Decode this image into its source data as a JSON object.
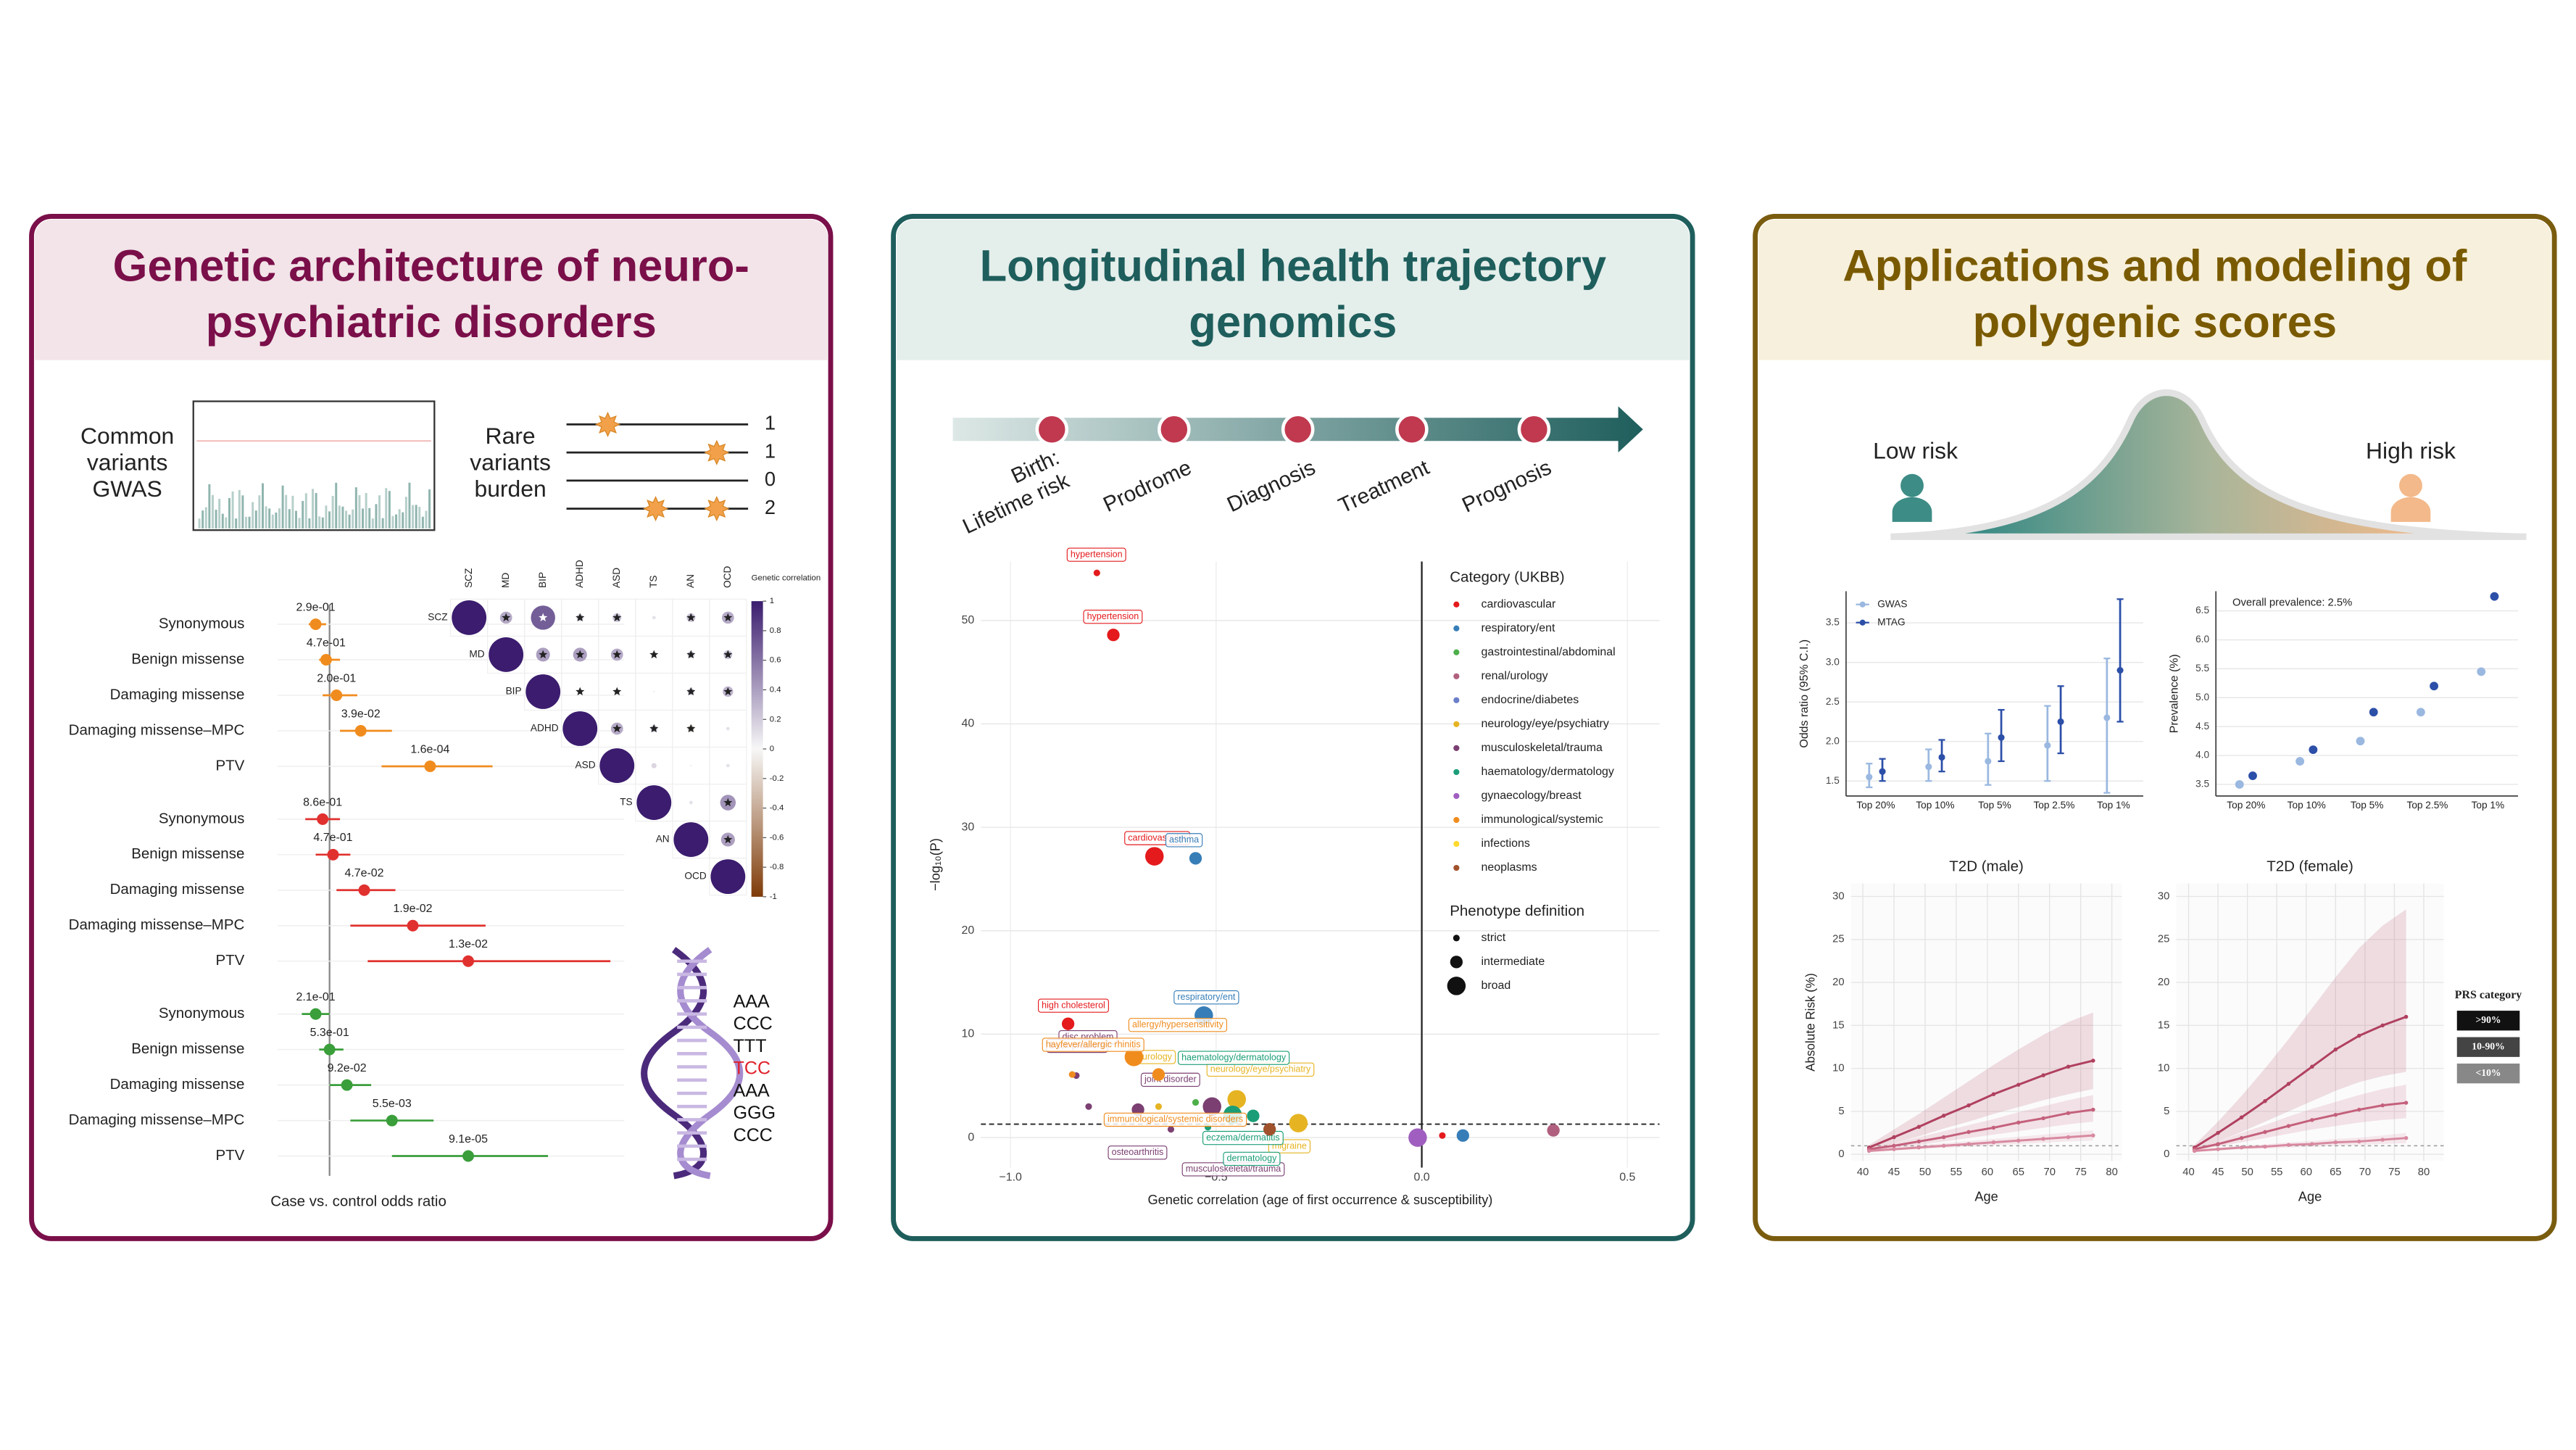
{
  "panels": [
    {
      "title": [
        "Genetic architecture of neuro-",
        "psychiatric disorders"
      ],
      "common_variants": [
        "Common",
        "variants",
        "GWAS"
      ],
      "rare_variants": [
        "Rare",
        "variants",
        "burden"
      ],
      "rare_counts": [
        1,
        1,
        0,
        2
      ],
      "codons": [
        "AAA",
        "CCC",
        "TTT",
        "TCC",
        "AAA",
        "GGG",
        "CCC"
      ],
      "codon_colors": [
        "#111111",
        "#111111",
        "#111111",
        "#e0202a",
        "#111111",
        "#111111",
        "#111111"
      ]
    },
    {
      "title": [
        "Longitudinal health trajectory",
        "genomics"
      ],
      "stages": [
        [
          "Birth:",
          "Lifetime risk"
        ],
        [
          "Prodrome"
        ],
        [
          "Diagnosis"
        ],
        [
          "Treatment"
        ],
        [
          "Prognosis"
        ]
      ]
    },
    {
      "title": [
        "Applications and modeling of",
        "polygenic scores"
      ],
      "low_label": "Low risk",
      "high_label": "High risk"
    }
  ],
  "chart_data": [
    {
      "type": "forest",
      "xlabel": "Case vs. control odds ratio",
      "xlim": [
        0.85,
        1.85
      ],
      "reference": 1,
      "categories": [
        "Synonymous",
        "Benign missense",
        "Damaging missense",
        "Damaging missense–MPC",
        "PTV"
      ],
      "series": [
        {
          "color": "#f08c1e",
          "values": [
            0.96,
            0.99,
            1.02,
            1.09,
            1.29
          ],
          "lower": [
            0.94,
            0.97,
            0.98,
            1.03,
            1.15
          ],
          "upper": [
            0.99,
            1.03,
            1.08,
            1.18,
            1.47
          ],
          "pvalue_labels": [
            "2.9e-01",
            "4.7e-01",
            "2.0e-01",
            "3.9e-02",
            "1.6e-04"
          ]
        },
        {
          "color": "#e0312f",
          "values": [
            0.98,
            1.01,
            1.1,
            1.24,
            1.4
          ],
          "lower": [
            0.93,
            0.96,
            1.02,
            1.06,
            1.11
          ],
          "upper": [
            1.03,
            1.06,
            1.19,
            1.45,
            1.81
          ],
          "pvalue_labels": [
            "8.6e-01",
            "4.7e-01",
            "4.7e-02",
            "1.9e-02",
            "1.3e-02"
          ]
        },
        {
          "color": "#3a9e3a",
          "values": [
            0.96,
            1.0,
            1.05,
            1.18,
            1.4
          ],
          "lower": [
            0.92,
            0.97,
            1.0,
            1.06,
            1.18
          ],
          "upper": [
            1.0,
            1.04,
            1.12,
            1.3,
            1.63
          ],
          "pvalue_labels": [
            "2.1e-01",
            "5.3e-01",
            "9.2e-02",
            "5.5e-03",
            "9.1e-05"
          ]
        }
      ]
    },
    {
      "type": "heatmap",
      "title": "Genetic correlation",
      "categories": [
        "SCZ",
        "MD",
        "BIP",
        "ADHD",
        "ASD",
        "TS",
        "AN",
        "OCD"
      ],
      "values": [
        [
          1,
          0.35,
          0.7,
          0.2,
          0.25,
          0.1,
          0.25,
          0.35
        ],
        [
          null,
          1,
          0.4,
          0.4,
          0.35,
          0.15,
          0.2,
          0.25
        ],
        [
          null,
          null,
          1,
          0.1,
          0.15,
          0.05,
          0.2,
          0.3
        ],
        [
          null,
          null,
          null,
          1,
          0.35,
          0.2,
          -0.2,
          0.1
        ],
        [
          null,
          null,
          null,
          null,
          1,
          0.15,
          0.05,
          0.1
        ],
        [
          null,
          null,
          null,
          null,
          null,
          1,
          0.1,
          0.45
        ],
        [
          null,
          null,
          null,
          null,
          null,
          null,
          1,
          0.4
        ],
        [
          null,
          null,
          null,
          null,
          null,
          null,
          null,
          1
        ]
      ],
      "significant": [
        [
          false,
          true,
          true,
          true,
          true,
          false,
          true,
          true
        ],
        [
          null,
          false,
          true,
          true,
          true,
          true,
          true,
          true
        ],
        [
          null,
          null,
          false,
          true,
          true,
          false,
          true,
          true
        ],
        [
          null,
          null,
          null,
          false,
          true,
          true,
          true,
          false
        ],
        [
          null,
          null,
          null,
          null,
          false,
          false,
          false,
          false
        ],
        [
          null,
          null,
          null,
          null,
          null,
          false,
          false,
          true
        ],
        [
          null,
          null,
          null,
          null,
          null,
          null,
          false,
          true
        ],
        [
          null,
          null,
          null,
          null,
          null,
          null,
          null,
          false
        ]
      ],
      "colors": [
        "#7f3b08",
        "#f7f7f7",
        "#3b1c6e"
      ],
      "ylim": [
        -1,
        1
      ],
      "yticks": [
        1,
        0.8,
        0.6,
        0.4,
        0.2,
        0,
        -0.2,
        -0.4,
        -0.6,
        -0.8,
        -1
      ]
    },
    {
      "type": "scatter",
      "xlabel": "Genetic correlation (age of first occurrence & susceptibility)",
      "ylabel": "−log₁₀(P)",
      "xlim": [
        -1.072,
        0.578
      ],
      "ylim": [
        -2.9,
        55.7
      ],
      "xticks": [
        {
          "value": -1,
          "label": "−1.0"
        },
        {
          "value": -0.5,
          "label": "−0.5"
        },
        {
          "value": 0,
          "label": "0.0"
        },
        {
          "value": 0.5,
          "label": "0.5"
        }
      ],
      "yticks": [
        0,
        10,
        20,
        30,
        40,
        50
      ],
      "hline": 1.3,
      "vline": 0,
      "legend_title": "Category (UKBB)",
      "definition_title": "Phenotype definition",
      "definitions": [
        "strict",
        "intermediate",
        "broad"
      ],
      "series": [
        {
          "name": "cardiovascular",
          "color": "#e41a1c",
          "x": [
            -0.79,
            -0.75,
            -0.65,
            -0.86,
            0.05
          ],
          "values": [
            54.6,
            48.6,
            27.2,
            11.0,
            0.2
          ],
          "definition": [
            "strict",
            "intermediate",
            "broad",
            "intermediate",
            "strict"
          ],
          "labels": [
            "hypertension",
            "hypertension",
            "cardiovascular",
            "high cholesterol",
            null
          ]
        },
        {
          "name": "respiratory/ent",
          "color": "#377eb8",
          "x": [
            -0.55,
            -0.53,
            0.1
          ],
          "values": [
            27.0,
            11.8,
            0.2
          ],
          "definition": [
            "intermediate",
            "broad",
            "intermediate"
          ],
          "labels": [
            "asthma",
            "respiratory/ent",
            null
          ]
        },
        {
          "name": "gastrointestinal/abdominal",
          "color": "#4daf4a",
          "x": [
            -0.55
          ],
          "values": [
            3.4
          ],
          "definition": [
            "strict"
          ],
          "labels": [
            null
          ]
        },
        {
          "name": "renal/urology",
          "color": "#b0607e",
          "x": [
            0.32
          ],
          "values": [
            0.7
          ],
          "definition": [
            "intermediate"
          ],
          "labels": [
            null
          ]
        },
        {
          "name": "endocrine/diabetes",
          "color": "#6a7fc8",
          "x": [],
          "values": [],
          "definition": [],
          "labels": []
        },
        {
          "name": "neurology/eye/psychiatry",
          "color": "#e6b422",
          "x": [
            -0.64,
            -0.45,
            -0.3
          ],
          "values": [
            3.0,
            3.7,
            1.4
          ],
          "definition": [
            "strict",
            "broad",
            "broad"
          ],
          "labels": [
            "neurology",
            "neurology/eye/psychiatry",
            "migraine"
          ]
        },
        {
          "name": "musculoskeletal/trauma",
          "color": "#7b3f72",
          "x": [
            -0.69,
            -0.81,
            -0.51,
            -0.61,
            -0.84
          ],
          "values": [
            2.7,
            3.0,
            3.0,
            0.8,
            6.0
          ],
          "definition": [
            "intermediate",
            "strict",
            "broad",
            "strict",
            "strict"
          ],
          "labels": [
            "osteoarthritis",
            "disc problem",
            "musculoskeletal/trauma",
            "joint disorder",
            "back problem"
          ]
        },
        {
          "name": "haematology/dermatology",
          "color": "#1b9e77",
          "x": [
            -0.46,
            -0.41,
            -0.52
          ],
          "values": [
            2.2,
            2.1,
            1.0
          ],
          "definition": [
            "broad",
            "intermediate",
            "strict"
          ],
          "labels": [
            "eczema/dermatitis",
            "dermatology",
            "haematology/dermatology"
          ]
        },
        {
          "name": "gynaecology/breast",
          "color": "#a05fc0",
          "x": [
            -0.01
          ],
          "values": [
            0.0
          ],
          "definition": [
            "broad"
          ],
          "labels": [
            null
          ]
        },
        {
          "name": "immunological/systemic",
          "color": "#f08c1e",
          "x": [
            -0.7,
            -0.64,
            -0.85
          ],
          "values": [
            7.8,
            6.1,
            6.1
          ],
          "definition": [
            "broad",
            "intermediate",
            "strict"
          ],
          "labels": [
            "immunological/systemic disorders",
            "allergy/hypersensitivity",
            "hayfever/allergic rhinitis"
          ]
        },
        {
          "name": "infections",
          "color": "#ffd92f",
          "x": [],
          "values": [],
          "definition": [],
          "labels": []
        },
        {
          "name": "neoplasms",
          "color": "#a0522d",
          "x": [
            -0.37
          ],
          "values": [
            0.8
          ],
          "definition": [
            "intermediate"
          ],
          "labels": [
            null
          ]
        }
      ]
    },
    {
      "type": "errorbar",
      "ylabel": "Odds ratio (95% C.I.)",
      "categories": [
        "Top 20%",
        "Top 10%",
        "Top 5%",
        "Top 2.5%",
        "Top 1%"
      ],
      "ylim": [
        1.31,
        3.9
      ],
      "yticks": [
        1.5,
        {
          "value": 2,
          "label": "2.0"
        },
        2.5,
        {
          "value": 3,
          "label": "3.0"
        },
        3.5
      ],
      "series": [
        {
          "name": "GWAS",
          "color": "#9ab8e0",
          "values": [
            1.55,
            1.68,
            1.75,
            1.95,
            2.3
          ],
          "lower": [
            1.42,
            1.5,
            1.45,
            1.5,
            1.35
          ],
          "upper": [
            1.72,
            1.9,
            2.1,
            2.45,
            3.05
          ]
        },
        {
          "name": "MTAG",
          "color": "#2c4fa8",
          "values": [
            1.62,
            1.8,
            2.05,
            2.25,
            2.9
          ],
          "lower": [
            1.5,
            1.62,
            1.75,
            1.85,
            2.25
          ],
          "upper": [
            1.78,
            2.02,
            2.4,
            2.7,
            3.8
          ]
        }
      ]
    },
    {
      "type": "dot",
      "ylabel": "Prevalence (%)",
      "annotation": "Overall prevalence: 2.5%",
      "categories": [
        "Top 20%",
        "Top 10%",
        "Top 5%",
        "Top 2.5%",
        "Top 1%"
      ],
      "ylim": [
        3.3,
        6.84
      ],
      "yticks": [
        3.5,
        {
          "value": 4,
          "label": "4.0"
        },
        4.5,
        {
          "value": 5,
          "label": "5.0"
        },
        5.5,
        {
          "value": 6,
          "label": "6.0"
        },
        6.5
      ],
      "series": [
        {
          "color": "#9ab8e0",
          "values": [
            3.5,
            3.9,
            4.25,
            4.75,
            5.45
          ]
        },
        {
          "color": "#2c4fa8",
          "values": [
            3.65,
            4.1,
            4.75,
            5.2,
            6.75
          ]
        }
      ]
    },
    {
      "type": "line",
      "title": "T2D (male)",
      "xlabel": "Age",
      "ylabel": "Absolute Risk (%)",
      "legend_title": "PRS category",
      "x": [
        41,
        45,
        49,
        53,
        57,
        61,
        65,
        69,
        73,
        77
      ],
      "xlim": [
        38.1,
        81.6
      ],
      "xticks": [
        40,
        45,
        50,
        55,
        60,
        65,
        70,
        75,
        80
      ],
      "ylim": [
        -0.77,
        31.5
      ],
      "yticks": [
        0,
        5,
        10,
        15,
        20,
        25,
        30
      ],
      "hline": 1,
      "series": [
        {
          "name": ">90%",
          "color": "#b0405f",
          "key_color": "#111111",
          "values": [
            0.8,
            2.0,
            3.2,
            4.5,
            5.7,
            7.0,
            8.1,
            9.2,
            10.2,
            10.9
          ],
          "lower": [
            0.6,
            1.3,
            2.1,
            3.0,
            3.8,
            4.7,
            5.5,
            6.3,
            7.0,
            7.6
          ],
          "upper": [
            1.1,
            2.9,
            4.7,
            6.6,
            8.5,
            10.4,
            12.2,
            13.9,
            15.4,
            16.5
          ]
        },
        {
          "name": "10-90%",
          "color": "#c4607c",
          "key_color": "#444444",
          "values": [
            0.6,
            1.0,
            1.5,
            2.0,
            2.6,
            3.1,
            3.7,
            4.2,
            4.8,
            5.2
          ],
          "lower": [
            0.5,
            0.8,
            1.1,
            1.5,
            1.9,
            2.3,
            2.7,
            3.1,
            3.5,
            3.8
          ],
          "upper": [
            0.7,
            1.3,
            2.0,
            2.7,
            3.4,
            4.1,
            4.9,
            5.6,
            6.3,
            6.9
          ]
        },
        {
          "name": "<10%",
          "color": "#d889a0",
          "key_color": "#888888",
          "values": [
            0.4,
            0.6,
            0.8,
            1.0,
            1.2,
            1.4,
            1.6,
            1.8,
            2.0,
            2.2
          ],
          "lower": [
            0.3,
            0.45,
            0.6,
            0.75,
            0.9,
            1.05,
            1.2,
            1.35,
            1.5,
            1.6
          ],
          "upper": [
            0.5,
            0.8,
            1.05,
            1.3,
            1.55,
            1.8,
            2.05,
            2.3,
            2.55,
            2.8
          ]
        }
      ]
    },
    {
      "type": "line",
      "title": "T2D (female)",
      "xlabel": "Age",
      "x": [
        41,
        45,
        49,
        53,
        57,
        61,
        65,
        69,
        73,
        77
      ],
      "xlim": [
        37.9,
        83.4
      ],
      "xticks": [
        40,
        45,
        50,
        55,
        60,
        65,
        70,
        75,
        80
      ],
      "ylim": [
        -0.77,
        31.5
      ],
      "yticks": [
        0,
        5,
        10,
        15,
        20,
        25,
        30
      ],
      "hline": 1,
      "series": [
        {
          "color": "#b0405f",
          "values": [
            0.8,
            2.5,
            4.3,
            6.2,
            8.2,
            10.2,
            12.2,
            13.8,
            15.0,
            16.0
          ],
          "lower": [
            0.6,
            1.5,
            2.6,
            3.8,
            5.0,
            6.2,
            7.4,
            8.4,
            9.1,
            9.6
          ],
          "upper": [
            1.1,
            3.8,
            6.8,
            10.0,
            13.4,
            17.0,
            20.6,
            24.0,
            26.6,
            28.5
          ]
        },
        {
          "color": "#c4607c",
          "values": [
            0.6,
            1.2,
            1.9,
            2.6,
            3.3,
            4.0,
            4.6,
            5.2,
            5.7,
            6.0
          ],
          "lower": [
            0.5,
            0.9,
            1.4,
            1.9,
            2.4,
            2.9,
            3.3,
            3.7,
            4.0,
            4.2
          ],
          "upper": [
            0.7,
            1.5,
            2.5,
            3.4,
            4.4,
            5.3,
            6.1,
            6.9,
            7.6,
            8.1
          ]
        },
        {
          "color": "#d889a0",
          "values": [
            0.4,
            0.6,
            0.8,
            0.9,
            1.1,
            1.2,
            1.4,
            1.5,
            1.7,
            1.9
          ],
          "lower": [
            0.3,
            0.45,
            0.6,
            0.68,
            0.8,
            0.88,
            1.0,
            1.1,
            1.2,
            1.3
          ],
          "upper": [
            0.5,
            0.8,
            1.0,
            1.15,
            1.4,
            1.55,
            1.8,
            1.95,
            2.2,
            2.5
          ]
        }
      ]
    }
  ]
}
